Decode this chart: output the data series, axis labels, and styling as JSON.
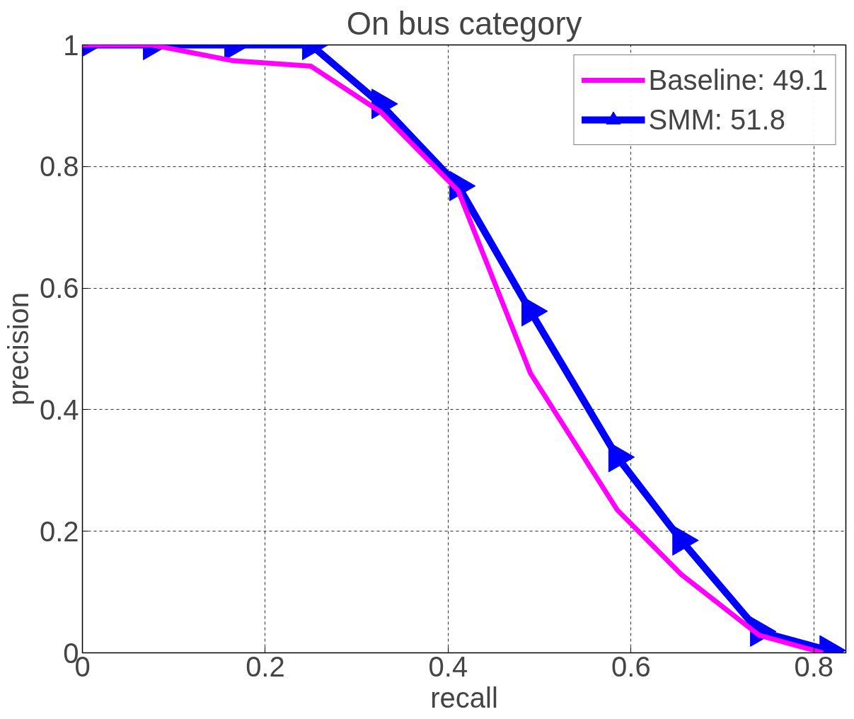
{
  "chart_data": {
    "type": "line",
    "title": "On bus category",
    "xlabel": "recall",
    "ylabel": "precision",
    "xlim": [
      0,
      0.835
    ],
    "ylim": [
      0,
      1
    ],
    "xticks": [
      0,
      0.2,
      0.4,
      0.6,
      0.8
    ],
    "yticks": [
      0,
      0.2,
      0.4,
      0.6,
      0.8,
      1
    ],
    "grid": true,
    "legend": "top right",
    "series": [
      {
        "name": "Baseline: 49.1",
        "color": "#ff00ff",
        "marker": "none",
        "x": [
          0,
          0.076,
          0.165,
          0.25,
          0.326,
          0.411,
          0.49,
          0.585,
          0.655,
          0.74,
          0.81
        ],
        "values": [
          1,
          1,
          0.974,
          0.965,
          0.89,
          0.76,
          0.46,
          0.235,
          0.129,
          0.029,
          0.0
        ]
      },
      {
        "name": "SMM: 51.8",
        "color": "#0000ff",
        "marker": "triangle",
        "x": [
          0.003,
          0.076,
          0.165,
          0.25,
          0.326,
          0.411,
          0.49,
          0.585,
          0.655,
          0.74,
          0.816
        ],
        "values": [
          1,
          1,
          1,
          1,
          0.903,
          0.768,
          0.562,
          0.322,
          0.185,
          0.035,
          0.004
        ]
      }
    ]
  }
}
